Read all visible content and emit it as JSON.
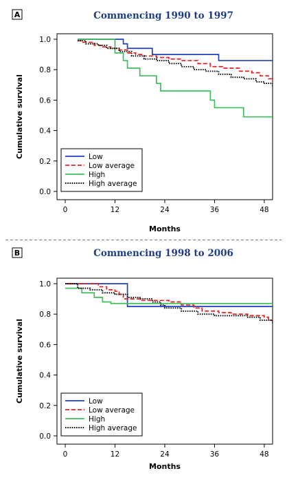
{
  "chart_data": [
    {
      "type": "line",
      "panel": "A",
      "title": "Commencing 1990 to 1997",
      "xlabel": "Months",
      "ylabel": "Cumulative survival",
      "xlim": [
        0,
        50
      ],
      "ylim": [
        0,
        1.0
      ],
      "x_ticks": [
        0,
        12,
        24,
        36,
        48
      ],
      "y_ticks": [
        0.0,
        0.2,
        0.4,
        0.6,
        0.8,
        1.0
      ],
      "y_tick_labels": [
        "0.0",
        "0.2",
        "0.4",
        "0.6",
        "0.8",
        "1.0"
      ],
      "legend_position": "bottom-left",
      "series": [
        {
          "name": "Low",
          "color": "#1f3fbf",
          "dash": "solid",
          "x": [
            3,
            12,
            14,
            15,
            21,
            37,
            50
          ],
          "y": [
            1.0,
            1.0,
            0.97,
            0.94,
            0.9,
            0.86,
            0.86
          ]
        },
        {
          "name": "Low average",
          "color": "#e81c1c",
          "dash": "dashed",
          "x": [
            3,
            4,
            7,
            9,
            11,
            13,
            15,
            17,
            19,
            22,
            25,
            28,
            32,
            35,
            38,
            42,
            45,
            47,
            49,
            50
          ],
          "y": [
            0.99,
            0.98,
            0.96,
            0.95,
            0.94,
            0.93,
            0.91,
            0.9,
            0.89,
            0.88,
            0.87,
            0.86,
            0.84,
            0.82,
            0.81,
            0.79,
            0.78,
            0.76,
            0.74,
            0.72
          ]
        },
        {
          "name": "High",
          "color": "#3cbf5a",
          "dash": "solid",
          "x": [
            3,
            12,
            14,
            15,
            18,
            22,
            23,
            35,
            36,
            43,
            50
          ],
          "y": [
            1.0,
            0.91,
            0.86,
            0.81,
            0.76,
            0.71,
            0.66,
            0.6,
            0.55,
            0.49,
            0.49
          ]
        },
        {
          "name": "High average",
          "color": "#000000",
          "dash": "dotted",
          "x": [
            3,
            5,
            8,
            10,
            13,
            16,
            19,
            22,
            25,
            28,
            31,
            34,
            37,
            40,
            43,
            46,
            48,
            50
          ],
          "y": [
            0.99,
            0.97,
            0.96,
            0.94,
            0.92,
            0.89,
            0.87,
            0.86,
            0.84,
            0.82,
            0.8,
            0.79,
            0.77,
            0.75,
            0.74,
            0.72,
            0.71,
            0.69
          ]
        }
      ]
    },
    {
      "type": "line",
      "panel": "B",
      "title": "Commencing 1998 to 2006",
      "xlabel": "Months",
      "ylabel": "Cumulative survival",
      "xlim": [
        0,
        50
      ],
      "ylim": [
        0,
        1.0
      ],
      "x_ticks": [
        0,
        12,
        24,
        36,
        48
      ],
      "y_ticks": [
        0.0,
        0.2,
        0.4,
        0.6,
        0.8,
        1.0
      ],
      "y_tick_labels": [
        "0.0",
        "0.2",
        "0.4",
        "0.6",
        "0.8",
        "1.0"
      ],
      "legend_position": "bottom-left",
      "series": [
        {
          "name": "Low",
          "color": "#1f3fbf",
          "dash": "solid",
          "x": [
            0,
            14,
            15,
            50
          ],
          "y": [
            1.0,
            1.0,
            0.85,
            0.85
          ]
        },
        {
          "name": "Low average",
          "color": "#e81c1c",
          "dash": "dashed",
          "x": [
            0,
            5,
            8,
            10,
            12,
            13,
            14,
            18,
            22,
            25,
            28,
            31,
            33,
            37,
            40,
            44,
            48,
            49,
            50
          ],
          "y": [
            1.0,
            1.0,
            0.98,
            0.96,
            0.95,
            0.93,
            0.9,
            0.89,
            0.89,
            0.88,
            0.86,
            0.84,
            0.82,
            0.81,
            0.8,
            0.79,
            0.78,
            0.76,
            0.76
          ]
        },
        {
          "name": "High",
          "color": "#3cbf5a",
          "dash": "solid",
          "x": [
            0,
            1,
            4,
            7,
            9,
            11,
            14,
            50
          ],
          "y": [
            0.97,
            0.97,
            0.94,
            0.91,
            0.88,
            0.87,
            0.87,
            0.87
          ]
        },
        {
          "name": "High average",
          "color": "#000000",
          "dash": "dotted",
          "x": [
            0,
            3,
            6,
            9,
            12,
            15,
            18,
            21,
            23,
            24,
            28,
            32,
            36,
            40,
            44,
            47,
            50
          ],
          "y": [
            1.0,
            0.97,
            0.96,
            0.94,
            0.93,
            0.91,
            0.9,
            0.88,
            0.86,
            0.84,
            0.82,
            0.8,
            0.79,
            0.79,
            0.78,
            0.76,
            0.74
          ]
        }
      ]
    }
  ]
}
